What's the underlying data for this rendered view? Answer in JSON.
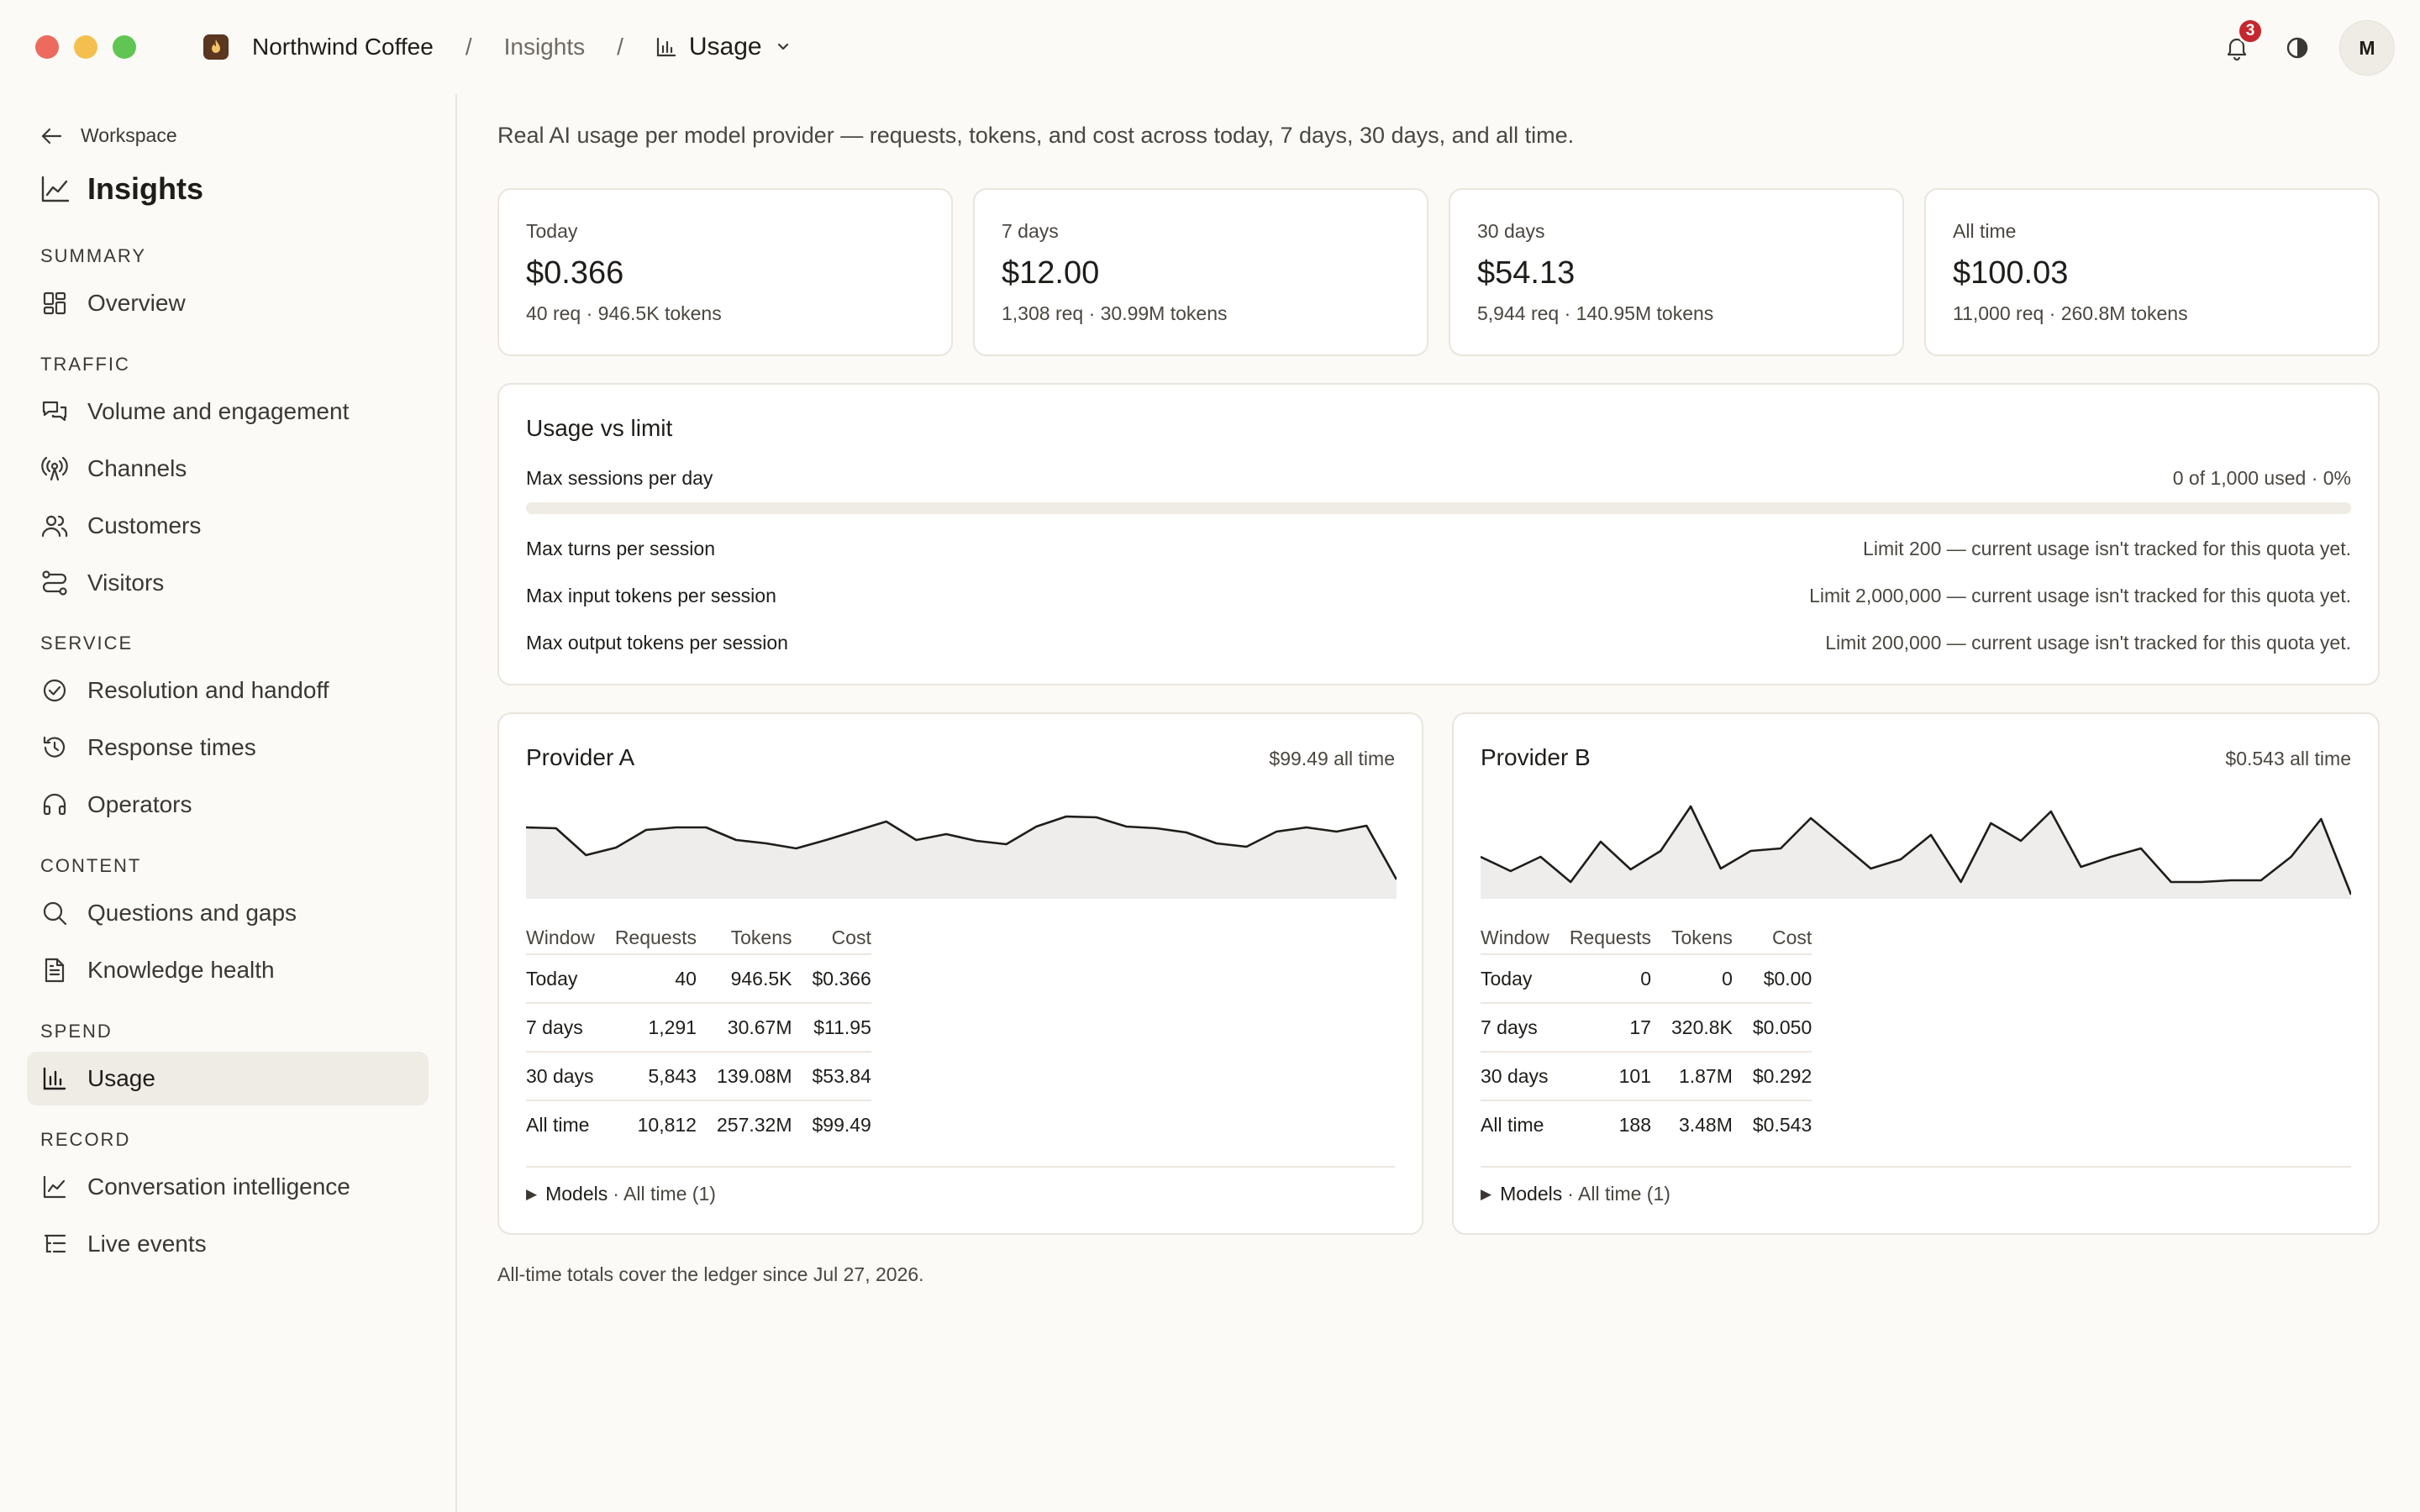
{
  "window": {
    "controls": [
      "close",
      "minimize",
      "zoom"
    ]
  },
  "header": {
    "brand": "Northwind Coffee",
    "breadcrumb": [
      "Insights",
      "Usage"
    ],
    "separator": "/",
    "notifications_count": "3",
    "avatar_initial": "M",
    "icons": [
      "flame-icon",
      "bar-chart-icon",
      "chevron-down-icon",
      "bell-icon",
      "contrast-icon"
    ]
  },
  "sidebar": {
    "back_label": "Workspace",
    "title": "Insights",
    "sections": {
      "summary": {
        "label": "SUMMARY",
        "items": [
          {
            "label": "Overview",
            "icon": "grid-icon"
          }
        ]
      },
      "traffic": {
        "label": "TRAFFIC",
        "items": [
          {
            "label": "Volume and engagement",
            "icon": "chat-bubbles-icon"
          },
          {
            "label": "Channels",
            "icon": "broadcast-icon"
          },
          {
            "label": "Customers",
            "icon": "users-icon"
          },
          {
            "label": "Visitors",
            "icon": "route-icon"
          }
        ]
      },
      "service": {
        "label": "SERVICE",
        "items": [
          {
            "label": "Resolution and handoff",
            "icon": "check-circle-icon"
          },
          {
            "label": "Response times",
            "icon": "history-icon"
          },
          {
            "label": "Operators",
            "icon": "headset-icon"
          }
        ]
      },
      "content": {
        "label": "CONTENT",
        "items": [
          {
            "label": "Questions and gaps",
            "icon": "search-icon"
          },
          {
            "label": "Knowledge health",
            "icon": "document-icon"
          }
        ]
      },
      "spend": {
        "label": "SPEND",
        "items": [
          {
            "label": "Usage",
            "icon": "bar-chart-icon",
            "active": true
          }
        ]
      },
      "record": {
        "label": "RECORD",
        "items": [
          {
            "label": "Conversation intelligence",
            "icon": "line-chart-icon"
          },
          {
            "label": "Live events",
            "icon": "list-tree-icon"
          }
        ]
      }
    }
  },
  "main": {
    "intro": "Real AI usage per model provider — requests, tokens, and cost across today, 7 days, 30 days, and all time.",
    "kpis": [
      {
        "label": "Today",
        "value": "$0.366",
        "sub": "40 req · 946.5K tokens"
      },
      {
        "label": "7 days",
        "value": "$12.00",
        "sub": "1,308 req · 30.99M tokens"
      },
      {
        "label": "30 days",
        "value": "$54.13",
        "sub": "5,944 req · 140.95M tokens"
      },
      {
        "label": "All time",
        "value": "$100.03",
        "sub": "11,000 req · 260.8M tokens"
      }
    ],
    "limits": {
      "title": "Usage vs limit",
      "rows": [
        {
          "label": "Max sessions per day",
          "value": "0 of 1,000 used · 0%",
          "progress": 0
        },
        {
          "label": "Max turns per session",
          "value": "Limit 200 — current usage isn't tracked for this quota yet."
        },
        {
          "label": "Max input tokens per session",
          "value": "Limit 2,000,000 — current usage isn't tracked for this quota yet."
        },
        {
          "label": "Max output tokens per session",
          "value": "Limit 200,000 — current usage isn't tracked for this quota yet."
        }
      ]
    },
    "providers": [
      {
        "name": "Provider A",
        "total": "$99.49 all time",
        "columns": [
          "Window",
          "Requests",
          "Tokens",
          "Cost"
        ],
        "rows": [
          [
            "Today",
            "40",
            "946.5K",
            "$0.366"
          ],
          [
            "7 days",
            "1,291",
            "30.67M",
            "$11.95"
          ],
          [
            "30 days",
            "5,843",
            "139.08M",
            "$53.84"
          ],
          [
            "All time",
            "10,812",
            "257.32M",
            "$99.49"
          ]
        ],
        "models_label": "Models",
        "models_suffix": "· All time (1)",
        "trend": [
          85,
          84,
          52,
          61,
          82,
          85,
          85,
          70,
          66,
          60,
          70,
          81,
          92,
          70,
          77,
          69,
          65,
          86,
          98,
          97,
          86,
          84,
          79,
          66,
          62,
          80,
          85,
          80,
          87,
          23
        ]
      },
      {
        "name": "Provider B",
        "total": "$0.543 all time",
        "columns": [
          "Window",
          "Requests",
          "Tokens",
          "Cost"
        ],
        "rows": [
          [
            "Today",
            "0",
            "0",
            "$0.00"
          ],
          [
            "7 days",
            "17",
            "320.8K",
            "$0.050"
          ],
          [
            "30 days",
            "101",
            "1.87M",
            "$0.292"
          ],
          [
            "All time",
            "188",
            "3.48M",
            "$0.543"
          ]
        ],
        "models_label": "Models",
        "models_suffix": "· All time (1)",
        "trend": [
          50,
          33,
          50,
          20,
          68,
          35,
          57,
          110,
          36,
          57,
          60,
          96,
          66,
          36,
          47,
          76,
          20,
          90,
          69,
          104,
          38,
          50,
          60,
          20,
          20,
          22,
          22,
          50,
          95,
          5
        ]
      }
    ],
    "footnote": "All-time totals cover the ledger since Jul 27, 2026."
  }
}
